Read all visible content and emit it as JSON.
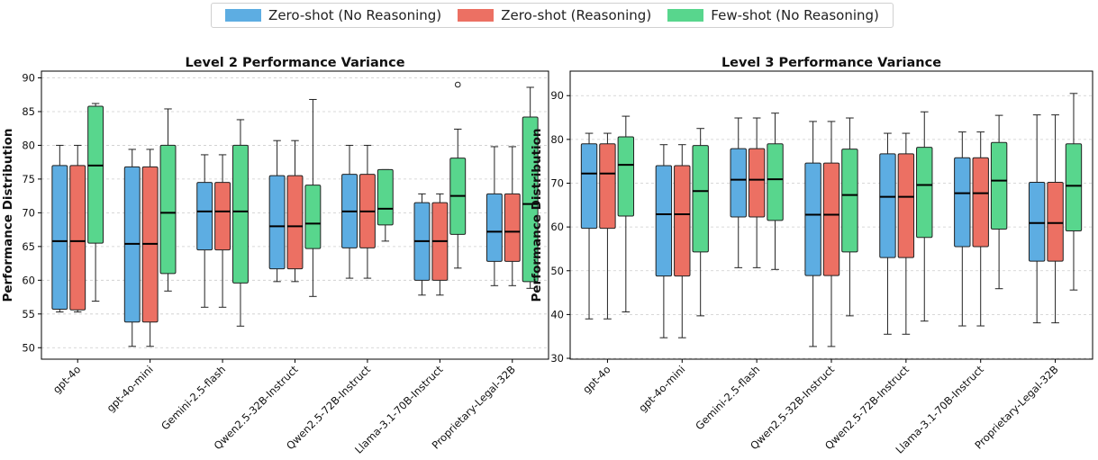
{
  "legend": [
    {
      "label": "Zero-shot (No Reasoning)",
      "color": "#5dade2"
    },
    {
      "label": "Zero-shot (Reasoning)",
      "color": "#ec7063"
    },
    {
      "label": "Few-shot (No Reasoning)",
      "color": "#58d68d"
    }
  ],
  "chart_data": [
    {
      "type": "box",
      "title": "Level 2 Performance Variance",
      "ylabel": "Performance Distribution",
      "ylim": [
        48.3,
        91.0
      ],
      "yticks": [
        50,
        55,
        60,
        65,
        70,
        75,
        80,
        85,
        90
      ],
      "grid": true,
      "categories": [
        "gpt-4o",
        "gpt-4o-mini",
        "Gemini-2.5-flash",
        "Qwen2.5-32B-Instruct",
        "Qwen2.5-72B-Instruct",
        "Llama-3.1-70B-Instruct",
        "Proprietary-Legal-32B"
      ],
      "series": [
        {
          "name": "Zero-shot (No Reasoning)",
          "boxes": [
            {
              "whislo": 55.3,
              "q1": 55.7,
              "med": 65.8,
              "q3": 77.0,
              "whishi": 80.0
            },
            {
              "whislo": 50.2,
              "q1": 53.8,
              "med": 65.4,
              "q3": 76.8,
              "whishi": 79.4
            },
            {
              "whislo": 56.0,
              "q1": 64.5,
              "med": 70.2,
              "q3": 74.5,
              "whishi": 78.6
            },
            {
              "whislo": 59.8,
              "q1": 61.7,
              "med": 68.0,
              "q3": 75.5,
              "whishi": 80.7
            },
            {
              "whislo": 60.3,
              "q1": 64.8,
              "med": 70.2,
              "q3": 75.7,
              "whishi": 80.0
            },
            {
              "whislo": 57.8,
              "q1": 60.0,
              "med": 65.8,
              "q3": 71.5,
              "whishi": 72.8
            },
            {
              "whislo": 59.2,
              "q1": 62.8,
              "med": 67.2,
              "q3": 72.8,
              "whishi": 79.8
            }
          ]
        },
        {
          "name": "Zero-shot (Reasoning)",
          "boxes": [
            {
              "whislo": 55.3,
              "q1": 55.6,
              "med": 65.8,
              "q3": 77.0,
              "whishi": 80.0
            },
            {
              "whislo": 50.2,
              "q1": 53.8,
              "med": 65.4,
              "q3": 76.8,
              "whishi": 79.4
            },
            {
              "whislo": 56.0,
              "q1": 64.5,
              "med": 70.2,
              "q3": 74.5,
              "whishi": 78.6
            },
            {
              "whislo": 59.8,
              "q1": 61.7,
              "med": 68.0,
              "q3": 75.5,
              "whishi": 80.7
            },
            {
              "whislo": 60.3,
              "q1": 64.8,
              "med": 70.2,
              "q3": 75.7,
              "whishi": 80.0
            },
            {
              "whislo": 57.8,
              "q1": 60.0,
              "med": 65.8,
              "q3": 71.5,
              "whishi": 72.8
            },
            {
              "whislo": 59.2,
              "q1": 62.8,
              "med": 67.2,
              "q3": 72.8,
              "whishi": 79.8
            }
          ]
        },
        {
          "name": "Few-shot (No Reasoning)",
          "boxes": [
            {
              "whislo": 56.9,
              "q1": 65.5,
              "med": 77.0,
              "q3": 85.8,
              "whishi": 86.2
            },
            {
              "whislo": 58.4,
              "q1": 61.0,
              "med": 70.0,
              "q3": 80.0,
              "whishi": 85.4
            },
            {
              "whislo": 53.2,
              "q1": 59.6,
              "med": 70.2,
              "q3": 80.0,
              "whishi": 83.8
            },
            {
              "whislo": 57.6,
              "q1": 64.7,
              "med": 68.4,
              "q3": 74.1,
              "whishi": 86.8
            },
            {
              "whislo": 65.8,
              "q1": 68.2,
              "med": 70.6,
              "q3": 76.4,
              "whishi": 76.4
            },
            {
              "whislo": 61.8,
              "q1": 66.8,
              "med": 72.5,
              "q3": 78.1,
              "whishi": 82.4,
              "fliers": [
                89.0
              ]
            },
            {
              "whislo": 58.8,
              "q1": 59.8,
              "med": 71.3,
              "q3": 84.2,
              "whishi": 88.6
            }
          ]
        }
      ]
    },
    {
      "type": "box",
      "title": "Level 3 Performance Variance",
      "ylabel": "Performance Distribution",
      "ylim": [
        29.8,
        95.6
      ],
      "yticks": [
        30,
        40,
        50,
        60,
        70,
        80,
        90
      ],
      "grid": true,
      "categories": [
        "gpt-4o",
        "gpt-4o-mini",
        "Gemini-2.5-flash",
        "Qwen2.5-32B-Instruct",
        "Qwen2.5-72B-Instruct",
        "Llama-3.1-70B-Instruct",
        "Proprietary-Legal-32B"
      ],
      "series": [
        {
          "name": "Zero-shot (No Reasoning)",
          "boxes": [
            {
              "whislo": 39.0,
              "q1": 59.7,
              "med": 72.2,
              "q3": 79.0,
              "whishi": 81.4
            },
            {
              "whislo": 34.7,
              "q1": 48.8,
              "med": 62.9,
              "q3": 74.0,
              "whishi": 78.8
            },
            {
              "whislo": 50.7,
              "q1": 62.3,
              "med": 70.8,
              "q3": 77.9,
              "whishi": 84.9
            },
            {
              "whislo": 32.7,
              "q1": 48.9,
              "med": 62.8,
              "q3": 74.6,
              "whishi": 84.1
            },
            {
              "whislo": 35.5,
              "q1": 53.0,
              "med": 66.9,
              "q3": 76.7,
              "whishi": 81.4
            },
            {
              "whislo": 37.4,
              "q1": 55.5,
              "med": 67.7,
              "q3": 75.8,
              "whishi": 81.7
            },
            {
              "whislo": 38.1,
              "q1": 52.2,
              "med": 60.9,
              "q3": 70.2,
              "whishi": 85.6
            }
          ]
        },
        {
          "name": "Zero-shot (Reasoning)",
          "boxes": [
            {
              "whislo": 39.0,
              "q1": 59.7,
              "med": 72.2,
              "q3": 79.0,
              "whishi": 81.4
            },
            {
              "whislo": 34.7,
              "q1": 48.8,
              "med": 62.9,
              "q3": 74.0,
              "whishi": 78.8
            },
            {
              "whislo": 50.7,
              "q1": 62.3,
              "med": 70.8,
              "q3": 77.9,
              "whishi": 84.9
            },
            {
              "whislo": 32.7,
              "q1": 48.9,
              "med": 62.8,
              "q3": 74.6,
              "whishi": 84.1
            },
            {
              "whislo": 35.5,
              "q1": 53.0,
              "med": 66.9,
              "q3": 76.7,
              "whishi": 81.4
            },
            {
              "whislo": 37.4,
              "q1": 55.5,
              "med": 67.7,
              "q3": 75.8,
              "whishi": 81.7
            },
            {
              "whislo": 38.1,
              "q1": 52.2,
              "med": 60.9,
              "q3": 70.2,
              "whishi": 85.6
            }
          ]
        },
        {
          "name": "Few-shot (No Reasoning)",
          "boxes": [
            {
              "whislo": 40.6,
              "q1": 62.5,
              "med": 74.2,
              "q3": 80.6,
              "whishi": 85.3
            },
            {
              "whislo": 39.7,
              "q1": 54.3,
              "med": 68.2,
              "q3": 78.6,
              "whishi": 82.5
            },
            {
              "whislo": 50.3,
              "q1": 61.5,
              "med": 70.9,
              "q3": 79.0,
              "whishi": 86.0
            },
            {
              "whislo": 39.7,
              "q1": 54.3,
              "med": 67.3,
              "q3": 77.8,
              "whishi": 84.9
            },
            {
              "whislo": 38.5,
              "q1": 57.6,
              "med": 69.6,
              "q3": 78.2,
              "whishi": 86.3
            },
            {
              "whislo": 45.9,
              "q1": 59.5,
              "med": 70.6,
              "q3": 79.3,
              "whishi": 85.5
            },
            {
              "whislo": 45.6,
              "q1": 59.1,
              "med": 69.4,
              "q3": 79.0,
              "whishi": 90.5
            }
          ]
        }
      ]
    }
  ]
}
